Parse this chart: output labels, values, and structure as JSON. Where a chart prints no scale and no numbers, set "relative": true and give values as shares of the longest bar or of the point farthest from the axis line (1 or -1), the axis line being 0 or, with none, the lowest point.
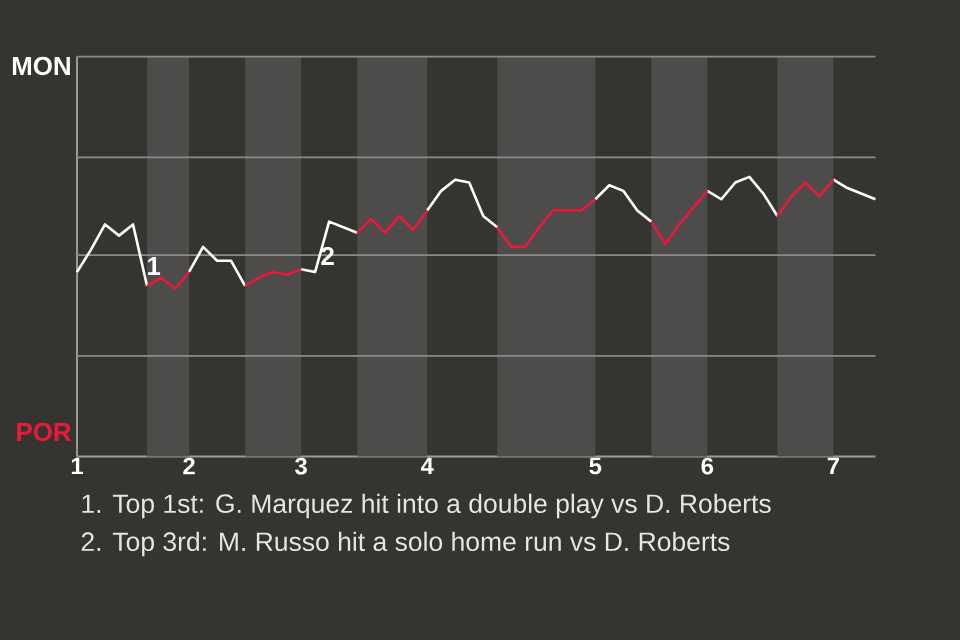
{
  "chart_data": {
    "type": "line",
    "relative": true,
    "categories": [
      "1",
      null,
      null,
      null,
      null,
      null,
      null,
      null,
      "2",
      null,
      null,
      null,
      null,
      null,
      null,
      null,
      "3",
      null,
      null,
      null,
      null,
      null,
      null,
      null,
      null,
      "4",
      null,
      null,
      null,
      null,
      null,
      null,
      null,
      null,
      null,
      null,
      null,
      "5",
      null,
      null,
      null,
      null,
      null,
      null,
      null,
      "6",
      null,
      null,
      null,
      null,
      null,
      null,
      null,
      null,
      "7",
      null,
      null,
      null
    ],
    "series": [
      {
        "color": "#ffffff",
        "values": [
          0.66,
          0.74,
          0.83,
          0.79,
          0.83,
          0.61,
          null,
          null,
          0.66,
          0.75,
          0.7,
          0.7,
          0.61,
          null,
          null,
          null,
          0.67,
          0.66,
          0.84,
          0.82,
          0.8,
          null,
          null,
          null,
          null,
          0.88,
          0.95,
          0.99,
          0.98,
          0.86,
          0.82,
          null,
          null,
          null,
          null,
          null,
          null,
          0.92,
          0.97,
          0.95,
          0.88,
          0.84,
          null,
          null,
          null,
          0.95,
          0.92,
          0.98,
          1,
          0.94,
          0.86,
          null,
          null,
          null,
          0.99,
          0.96,
          0.94,
          0.92
        ]
      },
      {
        "color": "#e8193c",
        "values": [
          null,
          null,
          null,
          null,
          null,
          0.61,
          0.64,
          0.6,
          0.66,
          null,
          null,
          null,
          0.61,
          0.64,
          0.66,
          0.65,
          0.67,
          null,
          null,
          null,
          0.8,
          0.85,
          0.8,
          0.86,
          0.81,
          0.88,
          null,
          null,
          null,
          null,
          0.82,
          0.75,
          0.75,
          0.82,
          0.88,
          0.88,
          0.88,
          0.92,
          null,
          null,
          null,
          0.84,
          0.76,
          0.83,
          0.89,
          0.95,
          null,
          null,
          null,
          null,
          0.86,
          0.93,
          0.98,
          0.93,
          0.99,
          null,
          null,
          null
        ]
      }
    ],
    "ref_lines": [
      {
        "axis": "y",
        "value": 0.36,
        "color": "#8a8a8a"
      },
      {
        "axis": "y",
        "value": 0.72,
        "color": "#8a8a8a"
      },
      {
        "axis": "y",
        "value": 1.07,
        "color": "#8a8a8a"
      },
      {
        "axis": "y",
        "value": 1.43,
        "color": "#8a8a8a"
      }
    ],
    "annotations": [
      "MON",
      "POR",
      "1",
      "2",
      "1. Top 1st: G. Marquez hit into a double play vs D. Roberts",
      "2. Top 3rd: M. Russo hit a solo home run vs D. Roberts"
    ]
  }
}
